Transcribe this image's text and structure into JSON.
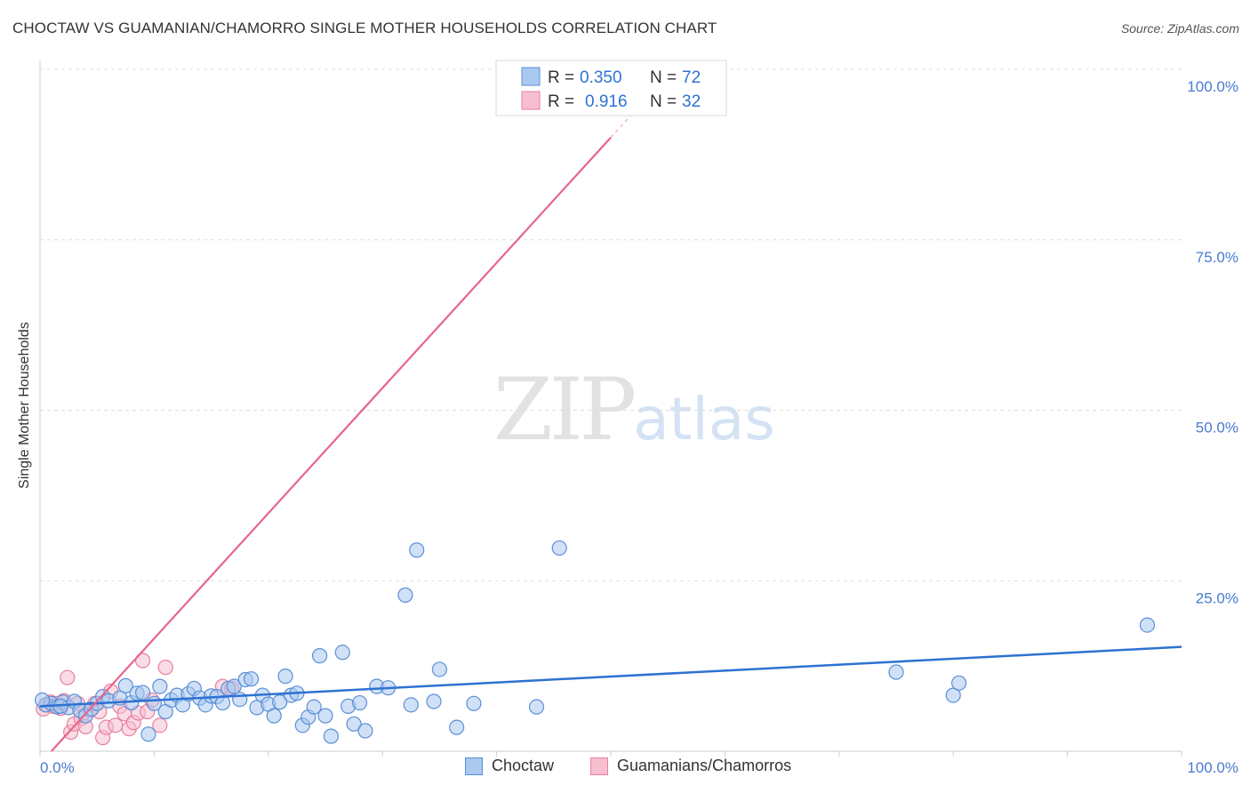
{
  "title": "CHOCTAW VS GUAMANIAN/CHAMORRO SINGLE MOTHER HOUSEHOLDS CORRELATION CHART",
  "source": "Source: ZipAtlas.com",
  "watermark": {
    "zip": "ZIP",
    "atlas": "atlas"
  },
  "legend": {
    "rows": [
      {
        "r_label": "R =",
        "r_value": "0.350",
        "n_label": "N =",
        "n_value": "72"
      },
      {
        "r_label": "R =",
        "r_value": "0.916",
        "n_label": "N =",
        "n_value": "32"
      }
    ]
  },
  "bottom_legend": {
    "series1": "Choctaw",
    "series2": "Guamanians/Chamorros"
  },
  "colors": {
    "choctaw_fill": "#a9c9f0",
    "choctaw_stroke": "#5b8fd6",
    "choctaw_line": "#2d72d2",
    "guam_fill": "#f6bfd0",
    "guam_stroke": "#e97fa0",
    "guam_line": "#e8658c",
    "tick_text": "#4a7ad0",
    "grid": "#dddddd"
  },
  "chart_data": {
    "type": "scatter",
    "title": "CHOCTAW VS GUAMANIAN/CHAMORRO SINGLE MOTHER HOUSEHOLDS CORRELATION CHART",
    "xlabel": "",
    "ylabel": "Single Mother Households",
    "xlim": [
      0,
      100
    ],
    "ylim": [
      0,
      100
    ],
    "x_tick_labels": [
      "0.0%",
      "100.0%"
    ],
    "y_ticks": [
      25,
      50,
      75,
      100
    ],
    "y_tick_labels": [
      "25.0%",
      "50.0%",
      "75.0%",
      "100.0%"
    ],
    "grid": true,
    "legend_placement": "top-center",
    "series": [
      {
        "name": "Choctaw",
        "R": 0.35,
        "N": 72,
        "trend": {
          "x": [
            0,
            100
          ],
          "y": [
            6.6,
            15.3
          ]
        },
        "points": [
          [
            0.5,
            6.8
          ],
          [
            1.0,
            7.0
          ],
          [
            1.5,
            6.5
          ],
          [
            2.0,
            7.2
          ],
          [
            2.5,
            6.4
          ],
          [
            3.0,
            7.3
          ],
          [
            3.5,
            6.0
          ],
          [
            4.0,
            5.2
          ],
          [
            4.5,
            6.2
          ],
          [
            5.0,
            7.0
          ],
          [
            5.5,
            8.0
          ],
          [
            6.0,
            7.4
          ],
          [
            7.0,
            7.8
          ],
          [
            7.5,
            9.6
          ],
          [
            8.0,
            7.1
          ],
          [
            8.5,
            8.5
          ],
          [
            9.0,
            8.6
          ],
          [
            9.5,
            2.5
          ],
          [
            10.0,
            7.0
          ],
          [
            10.5,
            9.5
          ],
          [
            11.0,
            5.8
          ],
          [
            11.5,
            7.5
          ],
          [
            12.0,
            8.2
          ],
          [
            12.5,
            6.8
          ],
          [
            13.0,
            8.4
          ],
          [
            13.5,
            9.2
          ],
          [
            14.0,
            7.8
          ],
          [
            14.5,
            6.8
          ],
          [
            15.0,
            8.1
          ],
          [
            15.5,
            8.0
          ],
          [
            16.0,
            7.1
          ],
          [
            16.5,
            9.2
          ],
          [
            17.0,
            9.5
          ],
          [
            17.5,
            7.6
          ],
          [
            18.0,
            10.5
          ],
          [
            18.5,
            10.6
          ],
          [
            19.0,
            6.4
          ],
          [
            19.5,
            8.2
          ],
          [
            20.0,
            6.9
          ],
          [
            20.5,
            5.2
          ],
          [
            21.0,
            7.2
          ],
          [
            21.5,
            11.0
          ],
          [
            22.0,
            8.2
          ],
          [
            22.5,
            8.5
          ],
          [
            23.0,
            3.8
          ],
          [
            23.5,
            5.0
          ],
          [
            24.0,
            6.5
          ],
          [
            24.5,
            14.0
          ],
          [
            25.0,
            5.2
          ],
          [
            25.5,
            2.2
          ],
          [
            26.5,
            14.5
          ],
          [
            27.0,
            6.6
          ],
          [
            27.5,
            4.0
          ],
          [
            28.0,
            7.1
          ],
          [
            28.5,
            3.0
          ],
          [
            29.5,
            9.5
          ],
          [
            30.5,
            9.3
          ],
          [
            32.0,
            22.9
          ],
          [
            32.5,
            6.8
          ],
          [
            33.0,
            29.5
          ],
          [
            34.5,
            7.3
          ],
          [
            35.0,
            12.0
          ],
          [
            36.5,
            3.5
          ],
          [
            38.0,
            7.0
          ],
          [
            43.5,
            6.5
          ],
          [
            45.5,
            29.8
          ],
          [
            75.0,
            11.6
          ],
          [
            80.0,
            8.2
          ],
          [
            80.5,
            10.0
          ],
          [
            97.0,
            18.5
          ],
          [
            0.2,
            7.5
          ],
          [
            1.8,
            6.6
          ]
        ]
      },
      {
        "name": "Guamanians/Chamorros",
        "R": 0.916,
        "N": 32,
        "trend": {
          "x": [
            1.0,
            50.0
          ],
          "y": [
            0.0,
            90.0
          ]
        },
        "trend_dashed": {
          "x": [
            50.0,
            52.5
          ],
          "y": [
            90.0,
            94.6
          ]
        },
        "points": [
          [
            0.3,
            6.2
          ],
          [
            0.6,
            6.8
          ],
          [
            0.9,
            7.2
          ],
          [
            1.2,
            6.6
          ],
          [
            1.5,
            7.0
          ],
          [
            1.8,
            6.3
          ],
          [
            2.1,
            7.4
          ],
          [
            2.4,
            10.8
          ],
          [
            2.7,
            2.8
          ],
          [
            3.0,
            4.0
          ],
          [
            3.3,
            7.0
          ],
          [
            3.6,
            4.8
          ],
          [
            4.0,
            3.6
          ],
          [
            4.4,
            6.0
          ],
          [
            4.8,
            7.0
          ],
          [
            5.2,
            5.8
          ],
          [
            5.5,
            2.0
          ],
          [
            5.8,
            3.5
          ],
          [
            6.2,
            8.8
          ],
          [
            6.6,
            3.8
          ],
          [
            7.0,
            6.6
          ],
          [
            7.4,
            5.5
          ],
          [
            7.8,
            3.3
          ],
          [
            8.2,
            4.2
          ],
          [
            8.6,
            5.6
          ],
          [
            9.0,
            13.3
          ],
          [
            9.4,
            5.8
          ],
          [
            9.8,
            7.5
          ],
          [
            10.5,
            3.8
          ],
          [
            11.0,
            12.3
          ],
          [
            16.0,
            9.5
          ],
          [
            16.8,
            9.2
          ]
        ]
      }
    ]
  }
}
